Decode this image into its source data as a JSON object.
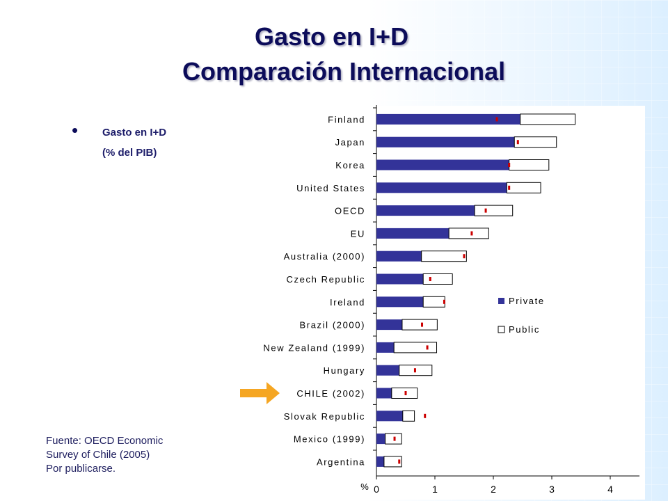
{
  "slide": {
    "title_line1": "Gasto en I+D",
    "title_line2": "Comparación Internacional",
    "bullet": {
      "symbol": "•",
      "line1": "Gasto en I+D",
      "line2": "(% del PIB)"
    },
    "source_lines": [
      "Fuente: OECD Economic",
      "Survey of Chile (2005)",
      "Por publicarse."
    ]
  },
  "colors": {
    "private": "#333399",
    "public": "#ffffff",
    "marker": "#cc0000",
    "arrow": "#f5a623",
    "title": "#0c0c5a"
  },
  "chart_data": {
    "type": "bar",
    "orientation": "horizontal",
    "stacked": true,
    "categories": [
      "Finland",
      "Japan",
      "Korea",
      "United States",
      "OECD",
      "EU",
      "Australia (2000)",
      "Czech Republic",
      "Ireland",
      "Brazil (2000)",
      "New Zealand (1999)",
      "Hungary",
      "CHILE (2002)",
      "Slovak Republic",
      "Mexico (1999)",
      "Argentina"
    ],
    "series": [
      {
        "name": "Private",
        "values": [
          2.46,
          2.36,
          2.27,
          2.23,
          1.68,
          1.24,
          0.77,
          0.8,
          0.8,
          0.44,
          0.3,
          0.39,
          0.26,
          0.45,
          0.15,
          0.13
        ]
      },
      {
        "name": "Public",
        "values": [
          0.94,
          0.72,
          0.68,
          0.58,
          0.65,
          0.68,
          0.77,
          0.5,
          0.37,
          0.6,
          0.73,
          0.56,
          0.44,
          0.2,
          0.28,
          0.3
        ]
      }
    ],
    "markers": [
      2.06,
      2.42,
      2.27,
      2.27,
      1.87,
      1.63,
      1.5,
      0.92,
      1.16,
      0.78,
      0.87,
      0.66,
      0.5,
      0.83,
      0.31,
      0.39
    ],
    "x_ticks": [
      0,
      1,
      2,
      3,
      4
    ],
    "xlim": [
      0,
      4.5
    ],
    "xlabel": "%",
    "legend": [
      "Private",
      "Public"
    ],
    "highlight": "CHILE (2002)"
  }
}
